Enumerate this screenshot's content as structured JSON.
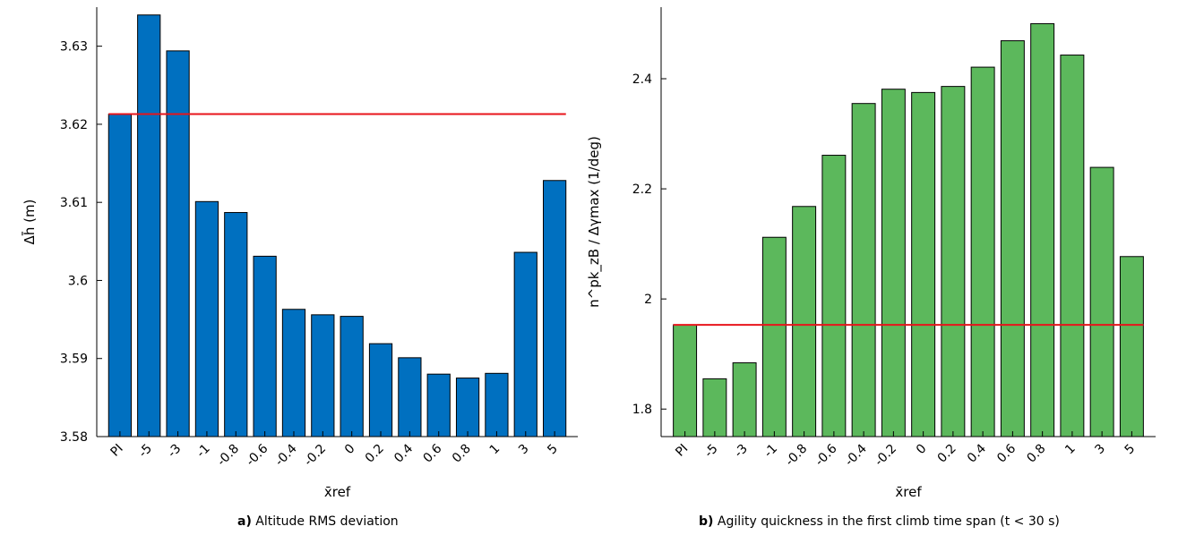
{
  "colors": {
    "series_a": "#0070c0",
    "series_b": "#5cb85c",
    "reference": "#e8141b",
    "axis": "#000000"
  },
  "captions": [
    {
      "label": "a)",
      "text": " Altitude RMS deviation"
    },
    {
      "label": "b)",
      "text": " Agility quickness in the first climb time span (t < 30 s)"
    }
  ],
  "chart_data": [
    {
      "type": "bar",
      "categories": [
        "PI",
        "-5",
        "-3",
        "-1",
        "-0.8",
        "-0.6",
        "-0.4",
        "-0.2",
        "0",
        "0.2",
        "0.4",
        "0.6",
        "0.8",
        "1",
        "3",
        "5"
      ],
      "values": [
        3.6213,
        3.634,
        3.6294,
        3.6101,
        3.6087,
        3.6031,
        3.5963,
        3.5956,
        3.5954,
        3.5919,
        3.5901,
        3.588,
        3.5875,
        3.5881,
        3.6036,
        3.6128
      ],
      "reference_value": 3.6213,
      "ylabel": "Δh̄ (m)",
      "xlabel": "x̄ref",
      "ylim": [
        3.58,
        3.635
      ],
      "yticks": [
        "3.58",
        "3.59",
        "3.6",
        "3.61",
        "3.62",
        "3.63"
      ],
      "grid": false
    },
    {
      "type": "bar",
      "categories": [
        "PI",
        "-5",
        "-3",
        "-1",
        "-0.8",
        "-0.6",
        "-0.4",
        "-0.2",
        "0",
        "0.2",
        "0.4",
        "0.6",
        "0.8",
        "1",
        "3",
        "5"
      ],
      "values": [
        1.953,
        1.855,
        1.884,
        2.112,
        2.168,
        2.261,
        2.355,
        2.381,
        2.375,
        2.386,
        2.421,
        2.469,
        2.5,
        2.443,
        2.239,
        2.077
      ],
      "reference_value": 1.953,
      "ylabel": "n^pk_zB / Δγmax (1/deg)",
      "xlabel": "x̄ref",
      "ylim": [
        1.75,
        2.53
      ],
      "yticks": [
        "1.8",
        "2",
        "2.2",
        "2.4"
      ],
      "grid": false
    }
  ]
}
